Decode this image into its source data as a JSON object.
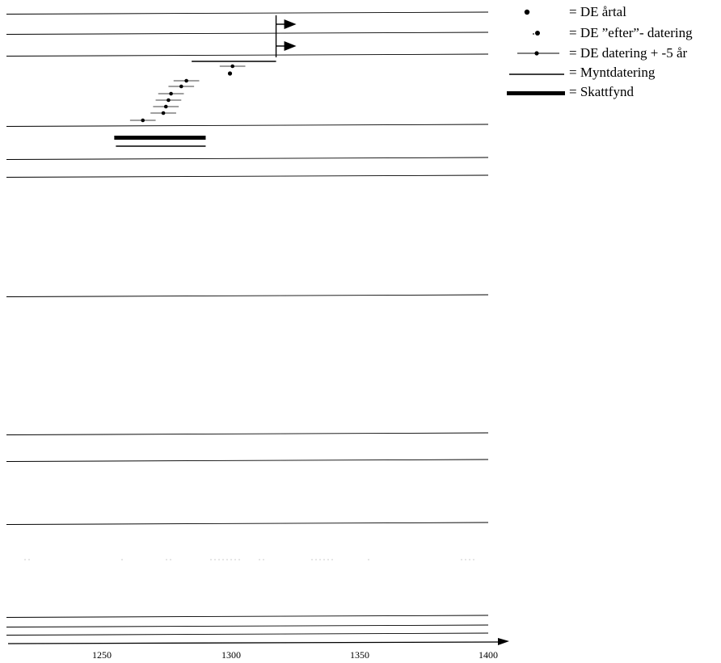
{
  "chart_data": {
    "type": "timeline",
    "title": "",
    "xlabel": "",
    "ylabel": "",
    "xlim": [
      1212,
      1400
    ],
    "x_ticks": [
      "1250",
      "1300",
      "1350",
      "1400"
    ],
    "grid": "horizontal row separator lines",
    "legend_placement": "top-right",
    "legend": [
      {
        "symbol": "dot",
        "label": "= DE årtal"
      },
      {
        "symbol": "dot-after",
        "label": "= DE ”efter”- datering"
      },
      {
        "symbol": "dot-range",
        "label": "= DE datering + -5 år"
      },
      {
        "symbol": "thin-line",
        "label": "= Myntdatering"
      },
      {
        "symbol": "thick-line",
        "label": "= Skattfynd"
      }
    ],
    "rows": [
      {
        "row": 1,
        "items": [
          {
            "kind": "after_arrow",
            "x": 1318
          }
        ]
      },
      {
        "row": 2,
        "items": [
          {
            "kind": "after_arrow",
            "x": 1318
          }
        ]
      },
      {
        "row": 3,
        "items": [
          {
            "kind": "coin_dating",
            "x0": 1286,
            "x1": 1318
          },
          {
            "kind": "de_range",
            "x": 1301,
            "x0": 1296,
            "x1": 1306
          },
          {
            "kind": "de_year",
            "x": 1300
          },
          {
            "kind": "de_range",
            "x": 1283,
            "x0": 1278,
            "x1": 1288
          },
          {
            "kind": "de_range",
            "x": 1281,
            "x0": 1276,
            "x1": 1286
          },
          {
            "kind": "de_range",
            "x": 1277,
            "x0": 1272,
            "x1": 1282
          },
          {
            "kind": "de_range",
            "x": 1276,
            "x0": 1271,
            "x1": 1281
          },
          {
            "kind": "de_range",
            "x": 1275,
            "x0": 1270,
            "x1": 1280
          },
          {
            "kind": "de_range",
            "x": 1274,
            "x0": 1269,
            "x1": 1279
          },
          {
            "kind": "de_range",
            "x": 1266,
            "x0": 1261,
            "x1": 1271
          }
        ]
      },
      {
        "row": 4,
        "items": [
          {
            "kind": "hoard",
            "x0": 1258,
            "x1": 1288
          },
          {
            "kind": "coin_dating",
            "x0": 1258,
            "x1": 1288
          }
        ]
      },
      {
        "row": 5,
        "items": []
      },
      {
        "row": 6,
        "items": []
      },
      {
        "row": 7,
        "items": []
      },
      {
        "row": 8,
        "items": []
      },
      {
        "row": 9,
        "items": []
      },
      {
        "row": 10,
        "items": []
      },
      {
        "row": 11,
        "items": []
      },
      {
        "row": 12,
        "items": []
      },
      {
        "row": 13,
        "items": []
      }
    ]
  }
}
